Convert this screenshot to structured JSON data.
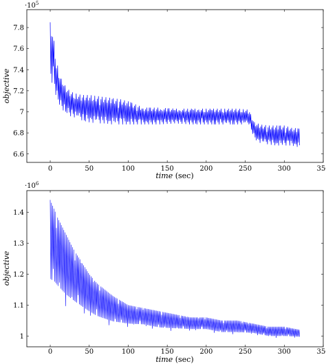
{
  "chart_data": [
    {
      "type": "line",
      "xlabel_italic": "time",
      "xlabel_unit": "(sec)",
      "ylabel": "objective",
      "y_multiplier": "·10",
      "y_multiplier_exp": "5",
      "xlim": [
        -30,
        350
      ],
      "ylim": [
        6.52,
        7.97
      ],
      "x_ticks": [
        0,
        50,
        100,
        150,
        200,
        250,
        300,
        350
      ],
      "y_ticks": [
        6.6,
        6.8,
        7,
        7.2,
        7.4,
        7.6,
        7.8
      ],
      "y_tick_labels": [
        "6.6",
        "6.8",
        "7",
        "7.2",
        "7.4",
        "7.6",
        "7.8"
      ],
      "grid": false,
      "series_color": "#0000ff",
      "series": [
        {
          "x": [
            0,
            2,
            4,
            6,
            8,
            10,
            12,
            15,
            20,
            25,
            30,
            40,
            50,
            60,
            70,
            80,
            90,
            100,
            120,
            140,
            160,
            180,
            200,
            220,
            240,
            255,
            258,
            262,
            270,
            280,
            290,
            300,
            310,
            320
          ],
          "upper": [
            7.85,
            7.82,
            7.72,
            7.6,
            7.5,
            7.42,
            7.36,
            7.3,
            7.24,
            7.2,
            7.18,
            7.16,
            7.16,
            7.15,
            7.14,
            7.13,
            7.12,
            7.1,
            7.04,
            7.04,
            7.03,
            7.03,
            7.03,
            7.03,
            7.03,
            7.02,
            6.96,
            6.9,
            6.88,
            6.87,
            6.87,
            6.87,
            6.85,
            6.84
          ],
          "lower": [
            7.3,
            7.28,
            7.26,
            7.2,
            7.13,
            7.08,
            7.05,
            7.02,
            7.0,
            6.96,
            6.95,
            6.92,
            6.9,
            6.89,
            6.89,
            6.88,
            6.88,
            6.88,
            6.88,
            6.88,
            6.89,
            6.88,
            6.88,
            6.88,
            6.88,
            6.88,
            6.82,
            6.74,
            6.7,
            6.69,
            6.68,
            6.68,
            6.68,
            6.66
          ]
        }
      ]
    },
    {
      "type": "line",
      "xlabel_italic": "time",
      "xlabel_unit": "(sec)",
      "ylabel": "objective",
      "y_multiplier": "·10",
      "y_multiplier_exp": "6",
      "xlim": [
        -30,
        350
      ],
      "ylim": [
        0.965,
        1.47
      ],
      "x_ticks": [
        0,
        50,
        100,
        150,
        200,
        250,
        300,
        350
      ],
      "y_ticks": [
        1,
        1.1,
        1.2,
        1.3,
        1.4
      ],
      "y_tick_labels": [
        "1",
        "1.1",
        "1.2",
        "1.3",
        "1.4"
      ],
      "grid": false,
      "series_color": "#0000ff",
      "series": [
        {
          "x": [
            0,
            5,
            10,
            20,
            30,
            40,
            50,
            60,
            80,
            100,
            120,
            140,
            160,
            180,
            200,
            220,
            240,
            260,
            280,
            300,
            320
          ],
          "upper": [
            1.44,
            1.41,
            1.38,
            1.33,
            1.28,
            1.24,
            1.2,
            1.17,
            1.13,
            1.1,
            1.09,
            1.08,
            1.07,
            1.06,
            1.06,
            1.05,
            1.05,
            1.04,
            1.03,
            1.03,
            1.02
          ],
          "lower": [
            1.1,
            1.1,
            1.09,
            1.07,
            1.06,
            1.05,
            1.04,
            1.03,
            1.02,
            1.02,
            1.02,
            1.01,
            1.01,
            1.01,
            1.01,
            1.0,
            1.0,
            1.0,
            0.99,
            0.99,
            0.99
          ]
        }
      ]
    }
  ]
}
